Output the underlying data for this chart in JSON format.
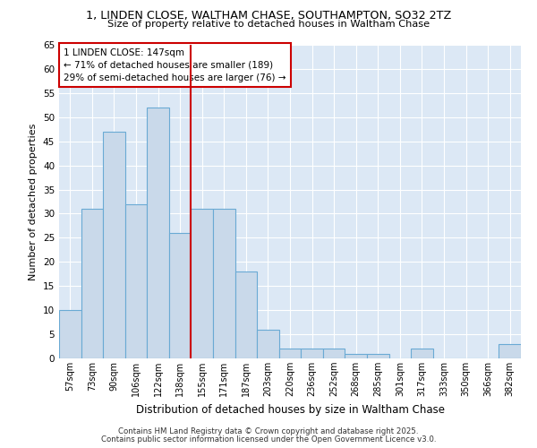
{
  "title1": "1, LINDEN CLOSE, WALTHAM CHASE, SOUTHAMPTON, SO32 2TZ",
  "title2": "Size of property relative to detached houses in Waltham Chase",
  "xlabel": "Distribution of detached houses by size in Waltham Chase",
  "ylabel": "Number of detached properties",
  "bar_labels": [
    "57sqm",
    "73sqm",
    "90sqm",
    "106sqm",
    "122sqm",
    "138sqm",
    "155sqm",
    "171sqm",
    "187sqm",
    "203sqm",
    "220sqm",
    "236sqm",
    "252sqm",
    "268sqm",
    "285sqm",
    "301sqm",
    "317sqm",
    "333sqm",
    "350sqm",
    "366sqm",
    "382sqm"
  ],
  "bar_values": [
    10,
    31,
    47,
    32,
    52,
    26,
    31,
    31,
    18,
    6,
    2,
    2,
    2,
    1,
    1,
    0,
    2,
    0,
    0,
    0,
    3
  ],
  "bar_color": "#c9d9ea",
  "bar_edge_color": "#6aaad4",
  "reference_label": "1 LINDEN CLOSE: 147sqm",
  "annotation_line1": "← 71% of detached houses are smaller (189)",
  "annotation_line2": "29% of semi-detached houses are larger (76) →",
  "annotation_box_color": "#ffffff",
  "annotation_box_edge": "#cc0000",
  "vline_color": "#cc0000",
  "ylim": [
    0,
    65
  ],
  "yticks": [
    0,
    5,
    10,
    15,
    20,
    25,
    30,
    35,
    40,
    45,
    50,
    55,
    60,
    65
  ],
  "chart_bg": "#dce8f5",
  "fig_bg": "#ffffff",
  "footer1": "Contains HM Land Registry data © Crown copyright and database right 2025.",
  "footer2": "Contains public sector information licensed under the Open Government Licence v3.0."
}
